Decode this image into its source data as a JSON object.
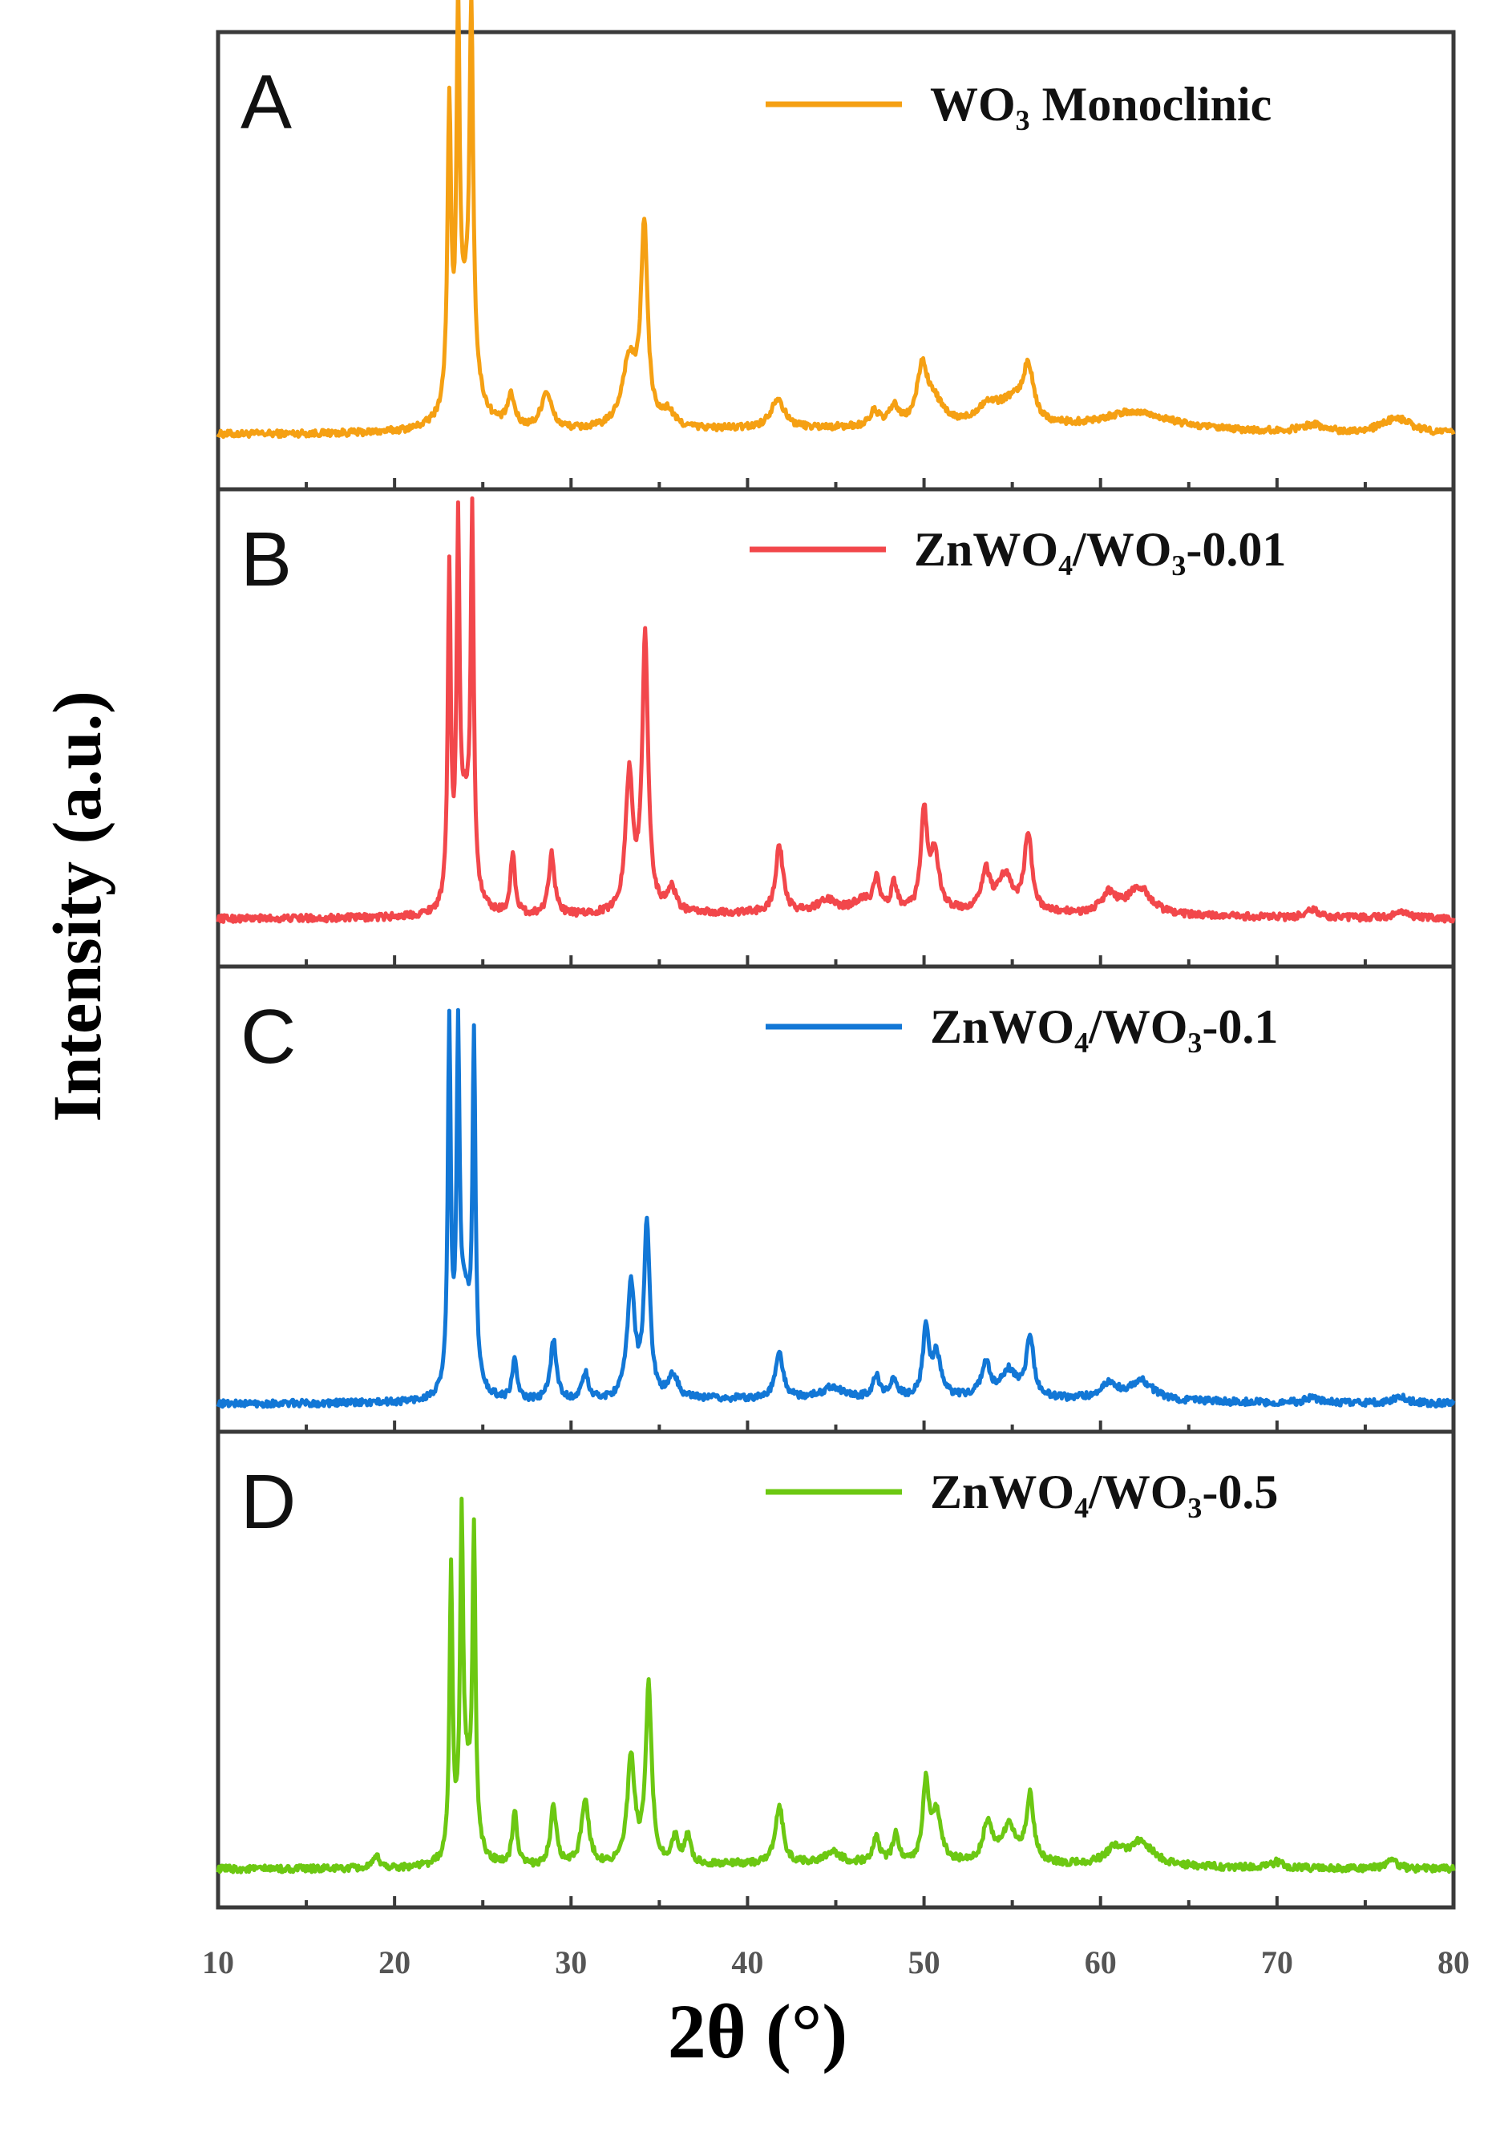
{
  "chart_data": {
    "type": "line",
    "xlabel": "2θ (°)",
    "ylabel": "Intensity (a.u.)",
    "xlim": [
      10,
      80
    ],
    "x_ticks": [
      10,
      20,
      30,
      40,
      50,
      60,
      70,
      80
    ],
    "minor_tick_step": 5,
    "yaxis": "arbitrary units, stacked panels, no numeric ticks",
    "panels": [
      {
        "letter": "A",
        "legend": "WO₃ Monoclinic",
        "color": "#f5a013",
        "baseline": 0.12,
        "peaks": [
          [
            23.1,
            0.78,
            0.12
          ],
          [
            23.6,
            0.95,
            0.1
          ],
          [
            24.35,
            0.93,
            0.12
          ],
          [
            24.0,
            0.3,
            0.6
          ],
          [
            26.6,
            0.08,
            0.25
          ],
          [
            28.6,
            0.1,
            0.35
          ],
          [
            33.3,
            0.18,
            0.5
          ],
          [
            34.15,
            0.52,
            0.22
          ],
          [
            35.5,
            0.04,
            0.4
          ],
          [
            41.7,
            0.08,
            0.45
          ],
          [
            47.2,
            0.04,
            0.3
          ],
          [
            48.3,
            0.05,
            0.3
          ],
          [
            49.9,
            0.15,
            0.35
          ],
          [
            50.6,
            0.06,
            0.6
          ],
          [
            53.6,
            0.05,
            0.8
          ],
          [
            55.9,
            0.14,
            0.35
          ],
          [
            55.0,
            0.06,
            0.9
          ],
          [
            62.0,
            0.05,
            2.5
          ],
          [
            72.0,
            0.02,
            0.8
          ],
          [
            76.8,
            0.04,
            1.0
          ]
        ]
      },
      {
        "letter": "B",
        "legend": "ZnWO₄/WO₃-0.01",
        "color": "#f2474b",
        "baseline": 0.1,
        "peaks": [
          [
            23.1,
            0.85,
            0.1
          ],
          [
            23.6,
            0.88,
            0.1
          ],
          [
            24.4,
            0.92,
            0.1
          ],
          [
            24.0,
            0.25,
            0.4
          ],
          [
            26.7,
            0.16,
            0.15
          ],
          [
            28.9,
            0.16,
            0.2
          ],
          [
            33.3,
            0.35,
            0.25
          ],
          [
            34.2,
            0.7,
            0.2
          ],
          [
            35.7,
            0.06,
            0.3
          ],
          [
            41.8,
            0.17,
            0.25
          ],
          [
            44.5,
            0.03,
            0.6
          ],
          [
            46.5,
            0.03,
            0.6
          ],
          [
            47.3,
            0.08,
            0.2
          ],
          [
            48.3,
            0.07,
            0.2
          ],
          [
            50.0,
            0.25,
            0.2
          ],
          [
            50.6,
            0.15,
            0.3
          ],
          [
            53.5,
            0.1,
            0.3
          ],
          [
            54.6,
            0.09,
            0.5
          ],
          [
            55.9,
            0.2,
            0.25
          ],
          [
            60.5,
            0.05,
            0.5
          ],
          [
            62.2,
            0.07,
            0.8
          ],
          [
            72.0,
            0.02,
            0.4
          ],
          [
            77.0,
            0.02,
            0.4
          ]
        ]
      },
      {
        "letter": "C",
        "legend": "ZnWO₄/WO₃-0.1",
        "color": "#1277d6",
        "baseline": 0.06,
        "peaks": [
          [
            23.1,
            0.95,
            0.1
          ],
          [
            23.6,
            0.85,
            0.1
          ],
          [
            24.5,
            0.87,
            0.1
          ],
          [
            24.0,
            0.25,
            0.4
          ],
          [
            26.8,
            0.11,
            0.15
          ],
          [
            29.0,
            0.16,
            0.2
          ],
          [
            30.8,
            0.07,
            0.2
          ],
          [
            33.4,
            0.3,
            0.25
          ],
          [
            34.3,
            0.45,
            0.2
          ],
          [
            35.8,
            0.06,
            0.3
          ],
          [
            41.8,
            0.12,
            0.25
          ],
          [
            44.8,
            0.03,
            0.6
          ],
          [
            47.3,
            0.06,
            0.2
          ],
          [
            48.3,
            0.05,
            0.2
          ],
          [
            50.1,
            0.17,
            0.2
          ],
          [
            50.7,
            0.11,
            0.3
          ],
          [
            53.5,
            0.09,
            0.3
          ],
          [
            54.8,
            0.07,
            0.5
          ],
          [
            56.0,
            0.16,
            0.25
          ],
          [
            60.5,
            0.04,
            0.6
          ],
          [
            62.3,
            0.05,
            0.8
          ],
          [
            72.0,
            0.015,
            0.4
          ],
          [
            77.0,
            0.02,
            0.4
          ]
        ]
      },
      {
        "letter": "D",
        "legend": "ZnWO₄/WO₃-0.5",
        "color": "#6cc812",
        "baseline": 0.08,
        "peaks": [
          [
            19.0,
            0.03,
            0.2
          ],
          [
            23.2,
            0.74,
            0.1
          ],
          [
            23.8,
            0.78,
            0.1
          ],
          [
            24.5,
            0.78,
            0.1
          ],
          [
            24.1,
            0.2,
            0.4
          ],
          [
            26.8,
            0.14,
            0.15
          ],
          [
            29.0,
            0.15,
            0.2
          ],
          [
            30.8,
            0.17,
            0.25
          ],
          [
            33.4,
            0.27,
            0.25
          ],
          [
            34.4,
            0.45,
            0.2
          ],
          [
            35.9,
            0.07,
            0.2
          ],
          [
            36.6,
            0.07,
            0.2
          ],
          [
            41.8,
            0.15,
            0.25
          ],
          [
            44.8,
            0.03,
            0.5
          ],
          [
            47.3,
            0.07,
            0.2
          ],
          [
            48.4,
            0.07,
            0.2
          ],
          [
            50.1,
            0.2,
            0.2
          ],
          [
            50.7,
            0.13,
            0.3
          ],
          [
            53.6,
            0.1,
            0.3
          ],
          [
            54.8,
            0.09,
            0.5
          ],
          [
            56.0,
            0.17,
            0.25
          ],
          [
            60.8,
            0.04,
            0.6
          ],
          [
            62.3,
            0.06,
            0.8
          ],
          [
            70.0,
            0.015,
            0.4
          ],
          [
            76.5,
            0.02,
            0.4
          ]
        ]
      }
    ]
  }
}
